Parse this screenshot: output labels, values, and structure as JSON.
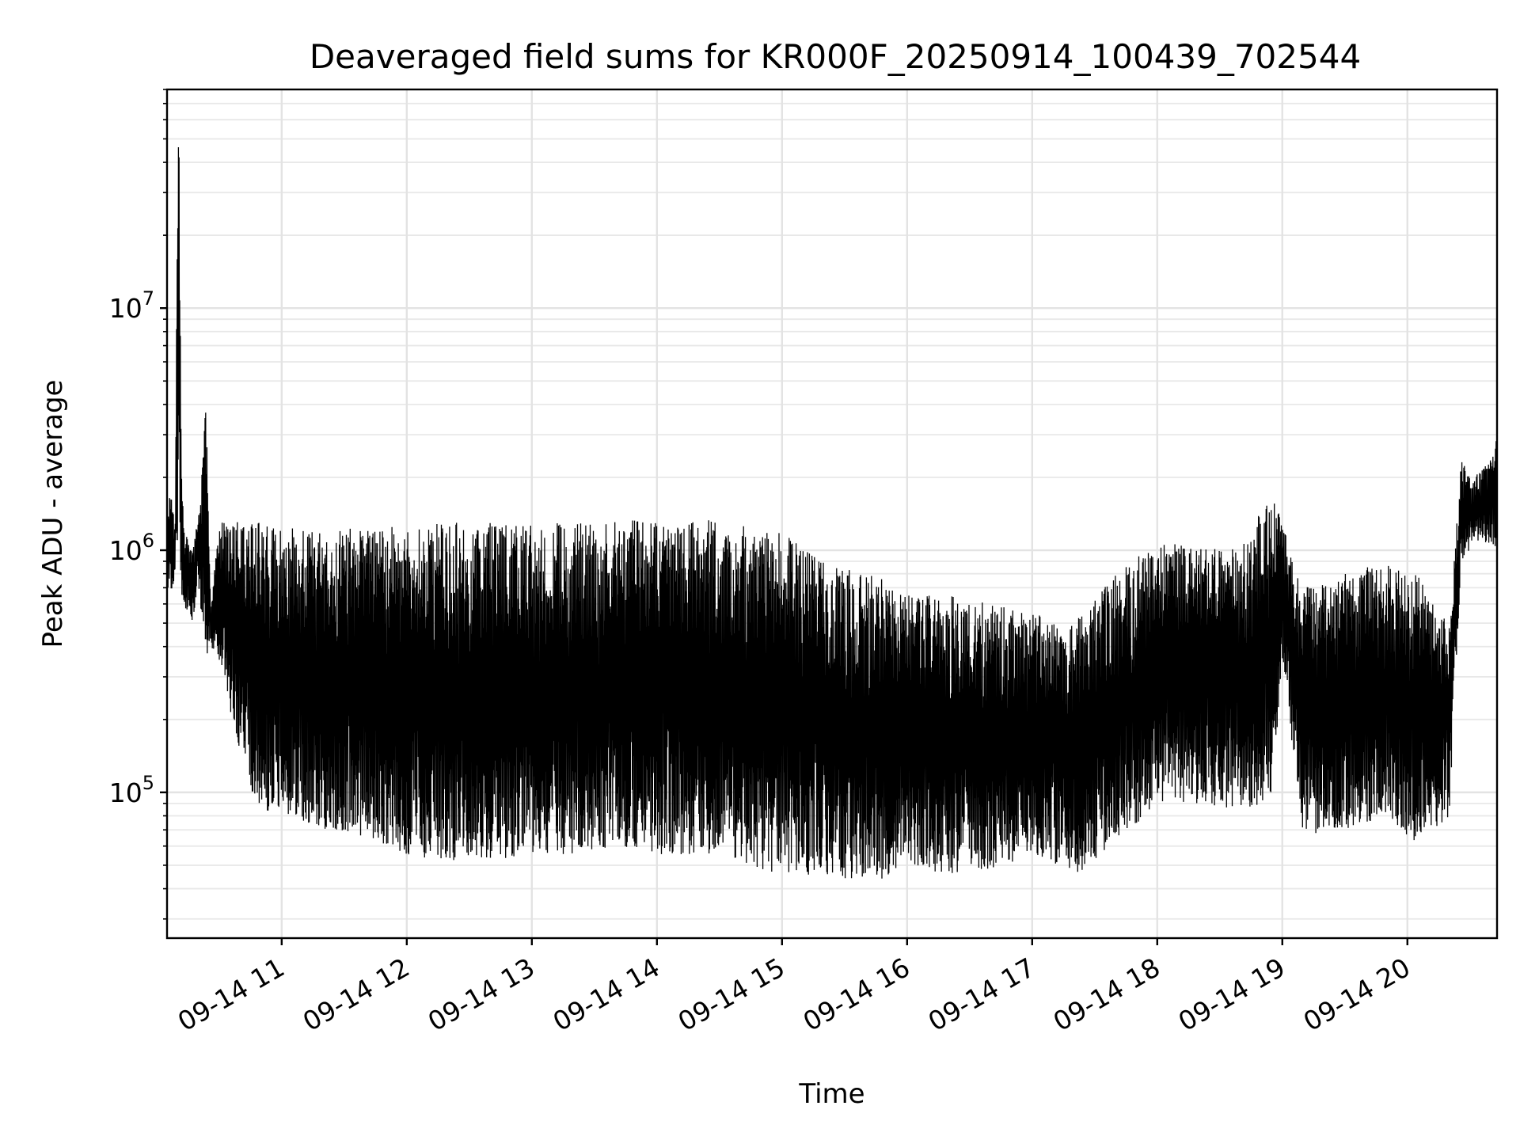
{
  "chart_data": {
    "type": "line",
    "title": "Deaveraged field sums for KR000F_20250914_100439_702544",
    "xlabel": "Time",
    "ylabel": "Peak ADU - average",
    "y_scale": "log",
    "grid": true,
    "grid_minor": true,
    "xlim": [
      "2025-09-14 10:05",
      "2025-09-14 20:43"
    ],
    "ylim": [
      25000,
      80000000
    ],
    "x_ticks": [
      {
        "value": "2025-09-14 11:00",
        "label": "09-14 11"
      },
      {
        "value": "2025-09-14 12:00",
        "label": "09-14 12"
      },
      {
        "value": "2025-09-14 13:00",
        "label": "09-14 13"
      },
      {
        "value": "2025-09-14 14:00",
        "label": "09-14 14"
      },
      {
        "value": "2025-09-14 15:00",
        "label": "09-14 15"
      },
      {
        "value": "2025-09-14 16:00",
        "label": "09-14 16"
      },
      {
        "value": "2025-09-14 17:00",
        "label": "09-14 17"
      },
      {
        "value": "2025-09-14 18:00",
        "label": "09-14 18"
      },
      {
        "value": "2025-09-14 19:00",
        "label": "09-14 19"
      },
      {
        "value": "2025-09-14 20:00",
        "label": "09-14 20"
      }
    ],
    "y_ticks": [
      {
        "value": 100000,
        "base": "10",
        "exp": "5"
      },
      {
        "value": 1000000,
        "base": "10",
        "exp": "6"
      },
      {
        "value": 10000000,
        "base": "10",
        "exp": "7"
      }
    ],
    "line_color": "#000000",
    "series": [
      {
        "x": [
          "2025-09-14 10:05",
          "2025-09-14 10:07",
          "2025-09-14 10:09",
          "2025-09-14 10:10",
          "2025-09-14 10:11",
          "2025-09-14 10:12",
          "2025-09-14 10:13",
          "2025-09-14 10:15",
          "2025-09-14 10:17",
          "2025-09-14 10:20",
          "2025-09-14 10:24",
          "2025-09-14 10:25",
          "2025-09-14 10:26",
          "2025-09-14 10:28",
          "2025-09-14 10:30",
          "2025-09-14 10:33",
          "2025-09-14 10:36",
          "2025-09-14 10:40",
          "2025-09-14 10:45",
          "2025-09-14 10:50",
          "2025-09-14 11:00",
          "2025-09-14 11:20",
          "2025-09-14 11:40",
          "2025-09-14 12:00",
          "2025-09-14 12:20",
          "2025-09-14 12:40",
          "2025-09-14 13:00",
          "2025-09-14 13:20",
          "2025-09-14 13:40",
          "2025-09-14 14:00",
          "2025-09-14 14:20",
          "2025-09-14 14:40",
          "2025-09-14 15:00",
          "2025-09-14 15:20",
          "2025-09-14 15:40",
          "2025-09-14 16:00",
          "2025-09-14 16:20",
          "2025-09-14 16:40",
          "2025-09-14 17:00",
          "2025-09-14 17:20",
          "2025-09-14 17:40",
          "2025-09-14 18:00",
          "2025-09-14 18:20",
          "2025-09-14 18:40",
          "2025-09-14 18:55",
          "2025-09-14 19:00",
          "2025-09-14 19:10",
          "2025-09-14 19:30",
          "2025-09-14 19:50",
          "2025-09-14 20:05",
          "2025-09-14 20:20",
          "2025-09-14 20:26",
          "2025-09-14 20:30",
          "2025-09-14 20:35",
          "2025-09-14 20:40",
          "2025-09-14 20:43"
        ],
        "y_high": [
          1700000,
          1650000,
          1400000,
          50000000,
          60000000,
          2000000,
          1300000,
          1100000,
          1000000,
          1400000,
          4500000,
          1200000,
          600000,
          900000,
          1300000,
          1300000,
          1350000,
          1300000,
          1300000,
          1300000,
          1250000,
          1200000,
          1250000,
          1250000,
          1300000,
          1300000,
          1300000,
          1300000,
          1350000,
          1300000,
          1350000,
          1300000,
          1200000,
          900000,
          800000,
          700000,
          650000,
          600000,
          550000,
          500000,
          800000,
          1100000,
          1100000,
          1000000,
          1900000,
          1300000,
          700000,
          800000,
          900000,
          800000,
          500000,
          2400000,
          2000000,
          2100000,
          2400000,
          3000000
        ],
        "y_low": [
          700000,
          650000,
          800000,
          900000,
          800000,
          650000,
          600000,
          550000,
          500000,
          700000,
          350000,
          400000,
          400000,
          380000,
          350000,
          300000,
          200000,
          150000,
          100000,
          85000,
          80000,
          70000,
          65000,
          55000,
          52000,
          52000,
          55000,
          55000,
          60000,
          55000,
          55000,
          52000,
          45000,
          45000,
          40000,
          50000,
          45000,
          48000,
          55000,
          45000,
          60000,
          90000,
          90000,
          85000,
          90000,
          350000,
          65000,
          70000,
          80000,
          60000,
          80000,
          900000,
          1000000,
          1100000,
          1050000,
          1000000
        ]
      }
    ]
  }
}
